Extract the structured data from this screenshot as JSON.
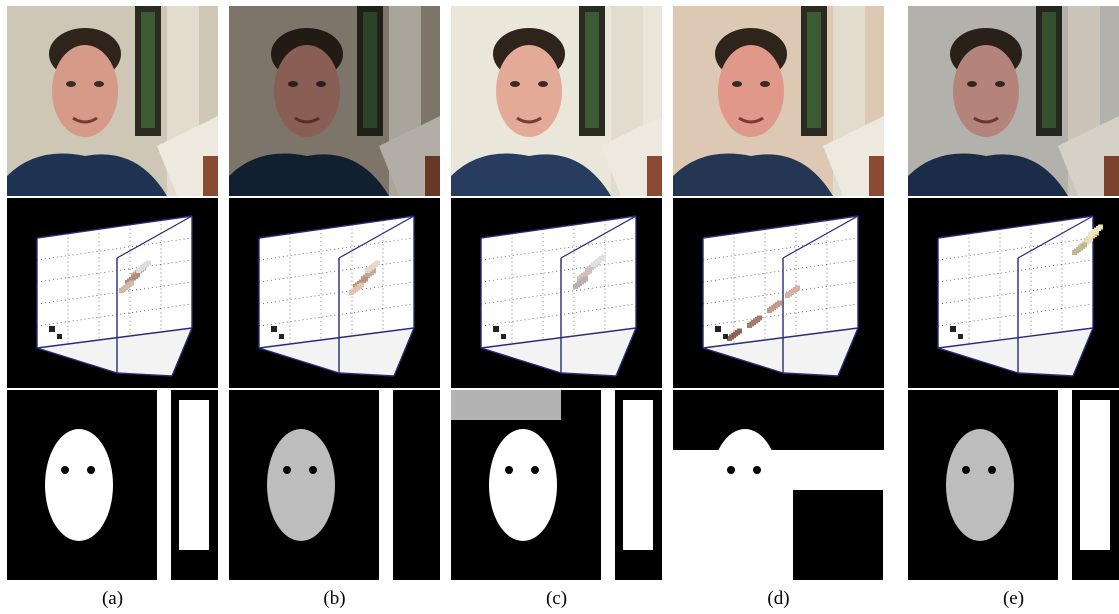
{
  "figure": {
    "panels": [
      {
        "caption": "(a)",
        "variant": "normal"
      },
      {
        "caption": "(b)",
        "variant": "dark"
      },
      {
        "caption": "(c)",
        "variant": "bright"
      },
      {
        "caption": "(d)",
        "variant": "warm"
      },
      {
        "caption": "(e)",
        "variant": "cool"
      }
    ],
    "rows": [
      "photo",
      "color-space-plot",
      "skin-mask"
    ]
  },
  "colors": {
    "background": "#ffffff",
    "plot_background": "#000000",
    "cube_edge": "#2a2a7a",
    "mask_fg": "#ffffff",
    "mask_bg": "#000000"
  }
}
